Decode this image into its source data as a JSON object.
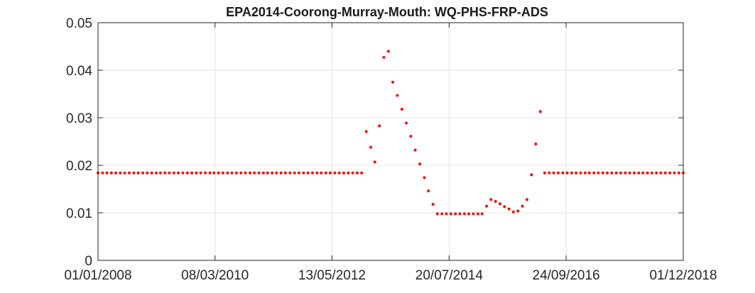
{
  "chart_data": {
    "type": "scatter",
    "title": "EPA2014-Coorong-Murray-Mouth: WQ-PHS-FRP-ADS",
    "xlabel": "",
    "ylabel": "",
    "xlim": [
      "2008-01-01",
      "2018-12-01"
    ],
    "ylim": [
      0,
      0.05
    ],
    "grid": true,
    "marker_color": "#ff0000",
    "x_ticks": [
      "2008-01-01",
      "2010-03-08",
      "2012-05-13",
      "2014-07-20",
      "2016-09-24",
      "2018-12-01"
    ],
    "x_tick_labels": [
      "01/01/2008",
      "08/03/2010",
      "13/05/2012",
      "20/07/2014",
      "24/09/2016",
      "01/12/2018"
    ],
    "y_ticks": [
      0,
      0.01,
      0.02,
      0.03,
      0.04,
      0.05
    ],
    "y_tick_labels": [
      "0",
      "0.01",
      "0.02",
      "0.03",
      "0.04",
      "0.05"
    ],
    "series": [
      {
        "x": [
          "2008-01-01",
          "2008-02-01",
          "2008-03-01",
          "2008-04-01",
          "2008-05-01",
          "2008-06-01",
          "2008-07-01",
          "2008-08-01",
          "2008-09-01",
          "2008-10-01",
          "2008-11-01",
          "2008-12-01",
          "2009-01-01",
          "2009-02-01",
          "2009-03-01",
          "2009-04-01",
          "2009-05-01",
          "2009-06-01",
          "2009-07-01",
          "2009-08-01",
          "2009-09-01",
          "2009-10-01",
          "2009-11-01",
          "2009-12-01",
          "2010-01-01",
          "2010-02-01",
          "2010-03-01",
          "2010-04-01",
          "2010-05-01",
          "2010-06-01",
          "2010-07-01",
          "2010-08-01",
          "2010-09-01",
          "2010-10-01",
          "2010-11-01",
          "2010-12-01",
          "2011-01-01",
          "2011-02-01",
          "2011-03-01",
          "2011-04-01",
          "2011-05-01",
          "2011-06-01",
          "2011-07-01",
          "2011-08-01",
          "2011-09-01",
          "2011-10-01",
          "2011-11-01",
          "2011-12-01",
          "2012-01-01",
          "2012-02-01",
          "2012-03-01",
          "2012-04-01",
          "2012-05-01",
          "2012-06-01",
          "2012-07-01",
          "2012-08-01",
          "2012-09-01",
          "2012-10-01",
          "2012-11-01",
          "2012-12-01",
          "2013-01-01",
          "2013-02-01",
          "2013-03-01",
          "2013-04-01",
          "2013-05-01",
          "2013-06-01",
          "2013-07-01",
          "2013-08-01",
          "2013-09-01",
          "2013-10-01",
          "2013-11-01",
          "2013-12-01",
          "2014-01-01",
          "2014-02-01",
          "2014-03-01",
          "2014-04-01",
          "2014-05-01",
          "2014-06-01",
          "2014-07-01",
          "2014-08-01",
          "2014-09-01",
          "2014-10-01",
          "2014-11-01",
          "2014-12-01",
          "2015-01-01",
          "2015-02-01",
          "2015-03-01",
          "2015-04-01",
          "2015-05-01",
          "2015-06-01",
          "2015-07-01",
          "2015-08-01",
          "2015-09-01",
          "2015-10-01",
          "2015-11-01",
          "2015-12-01",
          "2016-01-01",
          "2016-02-01",
          "2016-03-01",
          "2016-04-01",
          "2016-05-01",
          "2016-06-01",
          "2016-07-01",
          "2016-08-01",
          "2016-09-01",
          "2016-10-01",
          "2016-11-01",
          "2016-12-01",
          "2017-01-01",
          "2017-02-01",
          "2017-03-01",
          "2017-04-01",
          "2017-05-01",
          "2017-06-01",
          "2017-07-01",
          "2017-08-01",
          "2017-09-01",
          "2017-10-01",
          "2017-11-01",
          "2017-12-01",
          "2018-01-01",
          "2018-02-01",
          "2018-03-01",
          "2018-04-01",
          "2018-05-01",
          "2018-06-01",
          "2018-07-01",
          "2018-08-01",
          "2018-09-01",
          "2018-10-01",
          "2018-11-01",
          "2018-12-01"
        ],
        "y": [
          0.0184,
          0.0184,
          0.0184,
          0.0184,
          0.0184,
          0.0184,
          0.0184,
          0.0184,
          0.0184,
          0.0184,
          0.0184,
          0.0184,
          0.0184,
          0.0184,
          0.0184,
          0.0184,
          0.0184,
          0.0184,
          0.0184,
          0.0184,
          0.0184,
          0.0184,
          0.0184,
          0.0184,
          0.0184,
          0.0184,
          0.0184,
          0.0184,
          0.0184,
          0.0184,
          0.0184,
          0.0184,
          0.0184,
          0.0184,
          0.0184,
          0.0184,
          0.0184,
          0.0184,
          0.0184,
          0.0184,
          0.0184,
          0.0184,
          0.0184,
          0.0184,
          0.0184,
          0.0184,
          0.0184,
          0.0184,
          0.0184,
          0.0184,
          0.0184,
          0.0184,
          0.0184,
          0.0184,
          0.0184,
          0.0184,
          0.0184,
          0.0184,
          0.0184,
          0.0184,
          0.0271,
          0.0238,
          0.0207,
          0.0283,
          0.0427,
          0.044,
          0.0375,
          0.0347,
          0.0318,
          0.0289,
          0.0261,
          0.0232,
          0.0203,
          0.0174,
          0.0146,
          0.0118,
          0.0098,
          0.0098,
          0.0098,
          0.0098,
          0.0098,
          0.0098,
          0.0098,
          0.0098,
          0.0098,
          0.0098,
          0.0098,
          0.0114,
          0.0128,
          0.0124,
          0.0119,
          0.0113,
          0.0108,
          0.0102,
          0.0104,
          0.0114,
          0.0128,
          0.018,
          0.0245,
          0.0313,
          0.0184,
          0.0184,
          0.0184,
          0.0184,
          0.0184,
          0.0184,
          0.0184,
          0.0184,
          0.0184,
          0.0184,
          0.0184,
          0.0184,
          0.0184,
          0.0184,
          0.0184,
          0.0184,
          0.0184,
          0.0184,
          0.0184,
          0.0184,
          0.0184,
          0.0184,
          0.0184,
          0.0184,
          0.0184,
          0.0184,
          0.0184,
          0.0184,
          0.0184,
          0.0184,
          0.0184,
          0.0184
        ]
      }
    ]
  }
}
